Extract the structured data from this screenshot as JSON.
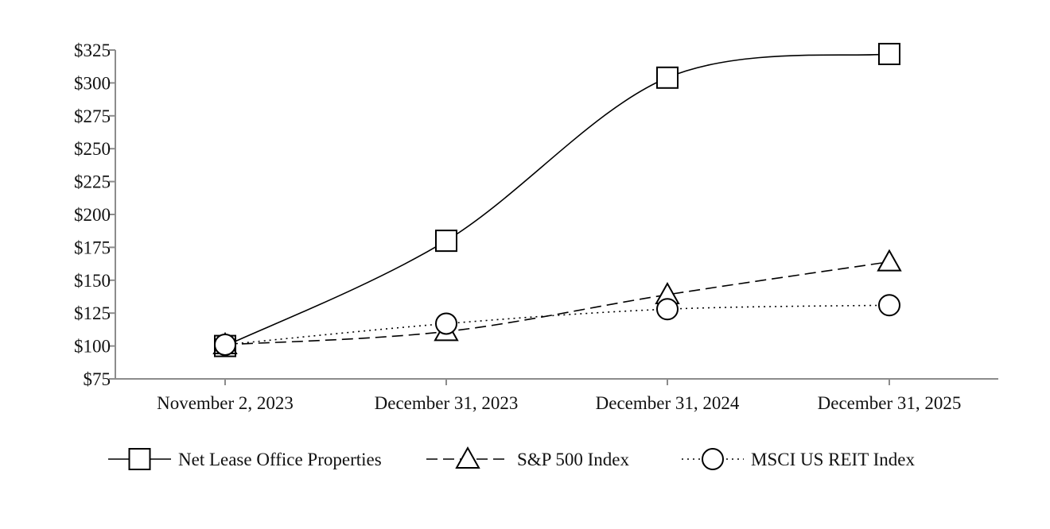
{
  "chart_data": {
    "type": "line",
    "title": "",
    "xlabel": "",
    "ylabel": "",
    "categories": [
      "November 2, 2023",
      "December 31, 2023",
      "December 31, 2024",
      "December 31, 2025"
    ],
    "y_ticks": [
      "$75",
      "$100",
      "$125",
      "$150",
      "$175",
      "$200",
      "$225",
      "$250",
      "$275",
      "$300",
      "$325"
    ],
    "y_tick_values": [
      75,
      100,
      125,
      150,
      175,
      200,
      225,
      250,
      275,
      300,
      325
    ],
    "ylim": [
      75,
      325
    ],
    "grid": false,
    "legend_position": "bottom",
    "series": [
      {
        "name": "Net Lease Office Properties",
        "values": [
          100,
          180,
          304,
          322
        ],
        "marker": "square",
        "line_style": "solid",
        "smooth": true
      },
      {
        "name": "S&P 500 Index",
        "values": [
          101,
          111,
          139,
          164
        ],
        "marker": "triangle",
        "line_style": "dashed",
        "smooth": true
      },
      {
        "name": "MSCI US REIT Index",
        "values": [
          101,
          117,
          128,
          131
        ],
        "marker": "circle",
        "line_style": "dotted",
        "smooth": true
      }
    ],
    "colors": {
      "line": "#000000",
      "axis": "#8c8c8c"
    }
  }
}
